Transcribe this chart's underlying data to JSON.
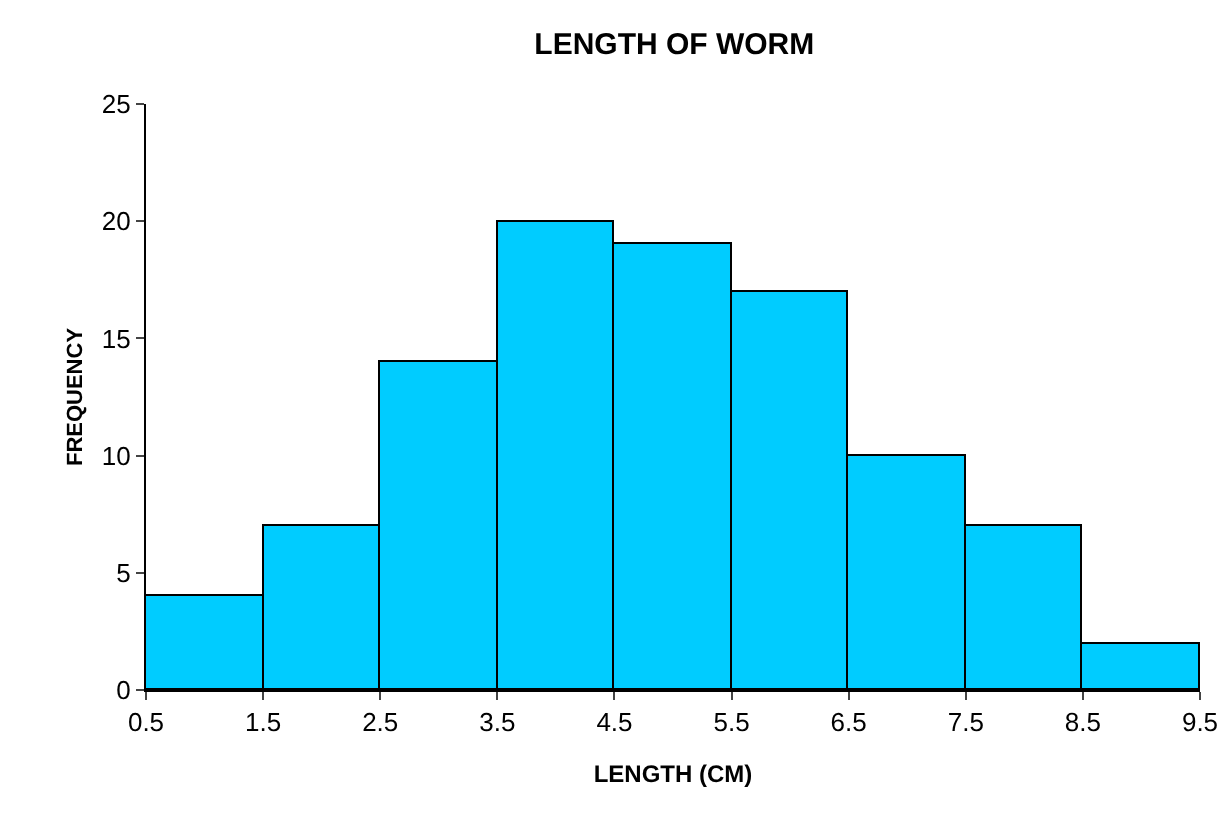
{
  "chart_data": {
    "type": "histogram",
    "title": "LENGTH OF WORM",
    "xlabel": "LENGTH (CM)",
    "ylabel": "FREQUENCY",
    "bins": [
      0.5,
      1.5,
      2.5,
      3.5,
      4.5,
      5.5,
      6.5,
      7.5,
      8.5,
      9.5
    ],
    "values": [
      4,
      7,
      14,
      20,
      19,
      17,
      10,
      7,
      2
    ],
    "color": "#00ccff",
    "xlim": [
      0.5,
      9.5
    ],
    "xticks": [
      0.5,
      1.5,
      2.5,
      3.5,
      4.5,
      5.5,
      6.5,
      7.5,
      8.5,
      9.5
    ],
    "ylim": [
      0,
      25
    ],
    "yticks": [
      0,
      5,
      10,
      15,
      20,
      25
    ],
    "grid": false
  }
}
